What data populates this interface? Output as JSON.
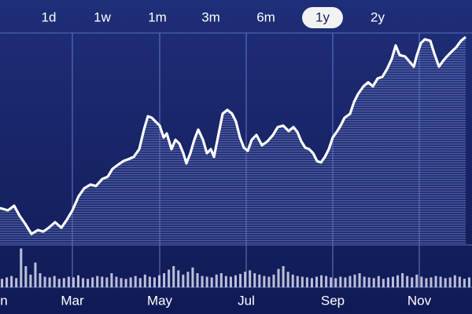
{
  "range_buttons": [
    "1d",
    "1w",
    "1m",
    "3m",
    "6m",
    "1y",
    "2y"
  ],
  "selected_range": "1y",
  "chart_data": [
    {
      "type": "line",
      "color": "#ffffff",
      "x": [
        0,
        10,
        18,
        25,
        32,
        40,
        48,
        55,
        62,
        70,
        78,
        85,
        92,
        100,
        107,
        115,
        122,
        130,
        137,
        143,
        150,
        157,
        163,
        170,
        177,
        183,
        188,
        193,
        198,
        203,
        208,
        212,
        218,
        223,
        228,
        233,
        237,
        242,
        247,
        252,
        258,
        263,
        268,
        272,
        277,
        283,
        289,
        295,
        300,
        305,
        310,
        315,
        320,
        326,
        333,
        340,
        347,
        353,
        360,
        367,
        373,
        378,
        383,
        388,
        393,
        398,
        403,
        408,
        413,
        418,
        423,
        428,
        433,
        438,
        445,
        450,
        455,
        462,
        468,
        474,
        480,
        486,
        492,
        498,
        503,
        508,
        515,
        520,
        526,
        530,
        535,
        540,
        547,
        552,
        558,
        563,
        568,
        575,
        580,
        586,
        592
      ],
      "values": [
        17.4,
        16.3,
        18.5,
        13.7,
        10,
        5.2,
        7,
        6.3,
        8.1,
        10.7,
        8.1,
        11.9,
        16.3,
        23,
        26.7,
        28.5,
        27.8,
        31.1,
        32.2,
        35.9,
        37.8,
        39.6,
        40.4,
        41.5,
        45.2,
        54.4,
        60.7,
        60,
        58.1,
        56.3,
        50.7,
        52.6,
        45.2,
        49.6,
        47.8,
        43.3,
        38.5,
        43.3,
        49.6,
        54.4,
        49.6,
        43.3,
        45.2,
        41.5,
        50.7,
        61.9,
        63.7,
        61.9,
        58.1,
        50.7,
        45.9,
        44.4,
        49.6,
        51.9,
        47,
        48.9,
        51.9,
        55.6,
        56.3,
        53.7,
        55.6,
        53.3,
        48.9,
        45.9,
        45.2,
        43.3,
        39.6,
        38.9,
        41.5,
        45.2,
        50.7,
        53.3,
        56.3,
        60,
        61.9,
        67.4,
        71.1,
        74.8,
        76.7,
        74.8,
        78.5,
        79.3,
        83,
        87.8,
        94.1,
        89.6,
        88.9,
        86.7,
        84.1,
        89.6,
        95.2,
        97,
        96.3,
        90.4,
        84.1,
        86.7,
        88.9,
        91.5,
        93.3,
        96.3,
        98.1
      ],
      "xlim": [
        0,
        600
      ],
      "ylim": [
        0,
        100
      ],
      "xticks": [
        {
          "value": 5,
          "label": "n"
        },
        {
          "value": 92,
          "label": "Mar"
        },
        {
          "value": 203,
          "label": "May"
        },
        {
          "value": 313,
          "label": "Jul"
        },
        {
          "value": 423,
          "label": "Sep"
        },
        {
          "value": 533,
          "label": "Nov"
        }
      ],
      "grid": true
    },
    {
      "type": "bar",
      "color": "#d8dcef",
      "xlim": [
        0,
        600
      ],
      "ylim": [
        0,
        60
      ],
      "values": [
        12,
        14,
        16,
        13,
        55,
        30,
        18,
        35,
        20,
        15,
        14,
        16,
        12,
        13,
        15,
        14,
        17,
        13,
        12,
        14,
        16,
        15,
        14,
        20,
        15,
        13,
        12,
        14,
        16,
        13,
        18,
        15,
        14,
        17,
        20,
        25,
        30,
        24,
        18,
        22,
        28,
        20,
        16,
        15,
        14,
        18,
        20,
        16,
        15,
        17,
        19,
        22,
        24,
        20,
        18,
        16,
        15,
        18,
        26,
        30,
        22,
        18,
        16,
        15,
        14,
        13,
        15,
        17,
        16,
        14,
        13,
        15,
        14,
        16,
        18,
        20,
        15,
        14,
        13,
        16,
        12,
        14,
        15,
        17,
        20,
        16,
        14,
        18,
        15,
        13,
        14,
        16,
        15,
        13,
        14,
        17,
        15,
        12,
        14
      ]
    }
  ]
}
